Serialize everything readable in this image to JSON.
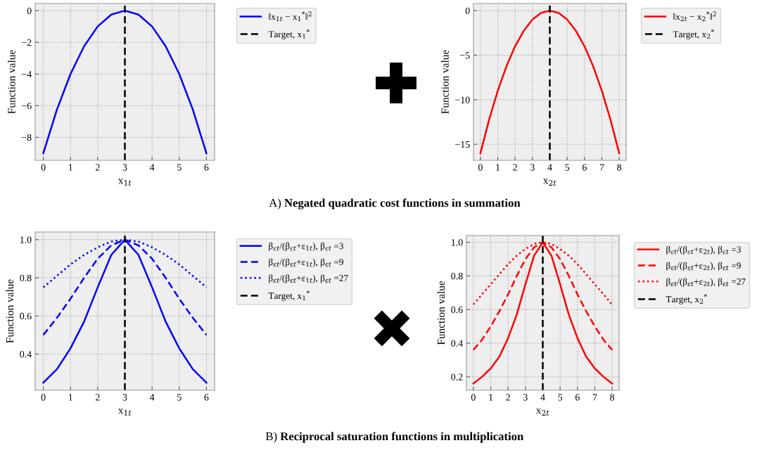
{
  "chart_data": [
    {
      "type": "line",
      "xlabel": "x$_{1t}$",
      "ylabel": "Function value",
      "legend": "right",
      "grid": true,
      "x": [
        0,
        0.5,
        1,
        1.5,
        2,
        2.5,
        3,
        3.5,
        4,
        4.5,
        5,
        5.5,
        6
      ],
      "series": [
        {
          "name": "‖x$_{1t}$ − x$_{1}$$^{*}$‖$^{2}$",
          "color": "#0000ff",
          "line_style": "solid",
          "values": [
            -9,
            -6.25,
            -4,
            -2.25,
            -1,
            -0.25,
            0,
            -0.25,
            -1,
            -2.25,
            -4,
            -6.25,
            -9
          ]
        }
      ],
      "ref_lines": [
        {
          "axis": "x",
          "value": 3,
          "label": "Target, x$_{1}$$^{*}$",
          "color": "#000000",
          "line_style": "dashed"
        }
      ],
      "xlim": [
        -0.3,
        6.3
      ],
      "xticks": [
        0,
        1,
        2,
        3,
        4,
        5,
        6
      ],
      "ylim": [
        -9.45,
        0.45
      ],
      "yticks": [
        -8,
        -6,
        -4,
        -2,
        0
      ],
      "annotations": [
        "A) Negated quadratic cost functions in summation"
      ]
    },
    {
      "type": "line",
      "xlabel": "x$_{2t}$",
      "ylabel": "Function value",
      "legend": "right",
      "grid": true,
      "x": [
        0,
        0.5,
        1,
        1.5,
        2,
        2.5,
        3,
        3.5,
        4,
        4.5,
        5,
        5.5,
        6,
        6.5,
        7,
        7.5,
        8
      ],
      "series": [
        {
          "name": "‖x$_{2t}$ − x$_{2}$$^{*}$‖$^{2}$",
          "color": "#ff0000",
          "line_style": "solid",
          "values": [
            -16,
            -12.25,
            -9,
            -6.25,
            -4,
            -2.25,
            -1,
            -0.25,
            0,
            -0.25,
            -1,
            -2.25,
            -4,
            -6.25,
            -9,
            -12.25,
            -16
          ]
        }
      ],
      "ref_lines": [
        {
          "axis": "x",
          "value": 4,
          "label": "Target, x$_{2}$$^{*}$",
          "color": "#000000",
          "line_style": "dashed"
        }
      ],
      "xlim": [
        -0.4,
        8.4
      ],
      "xticks": [
        0,
        1,
        2,
        3,
        4,
        5,
        6,
        7,
        8
      ],
      "ylim": [
        -16.8,
        0.8
      ],
      "yticks": [
        -15,
        -10,
        -5,
        0
      ]
    },
    {
      "type": "line",
      "xlabel": "x$_{1t}$",
      "ylabel": "Function value",
      "legend": "right",
      "grid": true,
      "x": [
        0,
        0.5,
        1,
        1.5,
        2,
        2.5,
        3,
        3.5,
        4,
        4.5,
        5,
        5.5,
        6
      ],
      "series": [
        {
          "name": "β$_{εt}$/(β$_{εt}$+ε$_{1t}$), β$_{εt}$ =3",
          "color": "#0000ff",
          "line_style": "solid",
          "values": [
            0.25,
            0.32,
            0.43,
            0.57,
            0.75,
            0.92,
            1,
            0.92,
            0.75,
            0.57,
            0.43,
            0.32,
            0.25
          ]
        },
        {
          "name": "β$_{εt}$/(β$_{εt}$+ε$_{1t}$), β$_{εt}$ =9",
          "color": "#0000ff",
          "line_style": "dashed",
          "values": [
            0.5,
            0.59,
            0.69,
            0.8,
            0.9,
            0.97,
            1,
            0.97,
            0.9,
            0.8,
            0.69,
            0.59,
            0.5
          ]
        },
        {
          "name": "β$_{εt}$/(β$_{εt}$+ε$_{1t}$), β$_{εt}$ =27",
          "color": "#0000ff",
          "line_style": "dotted",
          "values": [
            0.75,
            0.81,
            0.87,
            0.92,
            0.96,
            0.99,
            1,
            0.99,
            0.96,
            0.92,
            0.87,
            0.81,
            0.75
          ]
        }
      ],
      "ref_lines": [
        {
          "axis": "x",
          "value": 3,
          "label": "Target, x$_{1}$$^{*}$",
          "color": "#000000",
          "line_style": "dashed"
        }
      ],
      "xlim": [
        -0.3,
        6.3
      ],
      "xticks": [
        0,
        1,
        2,
        3,
        4,
        5,
        6
      ],
      "ylim": [
        0.21,
        1.04
      ],
      "yticks": [
        0.4,
        0.6,
        0.8,
        {
          "value": 1,
          "label": "1.0"
        }
      ],
      "annotations": [
        "B) Reciprocal saturation functions in multiplication"
      ]
    },
    {
      "type": "line",
      "xlabel": "x$_{2t}$",
      "ylabel": "Function value",
      "legend": "right",
      "grid": true,
      "x": [
        0,
        0.5,
        1,
        1.5,
        2,
        2.5,
        3,
        3.5,
        4,
        4.5,
        5,
        5.5,
        6,
        6.5,
        7,
        7.5,
        8
      ],
      "series": [
        {
          "name": "β$_{εt}$/(β$_{εt}$+ε$_{2t}$), β$_{εt}$ =3",
          "color": "#ff0000",
          "line_style": "solid",
          "values": [
            0.16,
            0.2,
            0.25,
            0.32,
            0.43,
            0.57,
            0.75,
            0.92,
            1,
            0.92,
            0.75,
            0.57,
            0.43,
            0.32,
            0.25,
            0.2,
            0.16
          ]
        },
        {
          "name": "β$_{εt}$/(β$_{εt}$+ε$_{2t}$), β$_{εt}$ =9",
          "color": "#ff0000",
          "line_style": "dashed",
          "values": [
            0.36,
            0.42,
            0.5,
            0.59,
            0.69,
            0.8,
            0.9,
            0.97,
            1,
            0.97,
            0.9,
            0.8,
            0.69,
            0.59,
            0.5,
            0.42,
            0.36
          ]
        },
        {
          "name": "β$_{εt}$/(β$_{εt}$+ε$_{2t}$), β$_{εt}$ =27",
          "color": "#ff0000",
          "line_style": "dotted",
          "values": [
            0.63,
            0.69,
            0.75,
            0.81,
            0.87,
            0.92,
            0.96,
            0.99,
            1,
            0.99,
            0.96,
            0.92,
            0.87,
            0.81,
            0.75,
            0.69,
            0.63
          ]
        }
      ],
      "ref_lines": [
        {
          "axis": "x",
          "value": 4,
          "label": "Target, x$_{2}$$^{*}$",
          "color": "#000000",
          "line_style": "dashed"
        }
      ],
      "xlim": [
        -0.4,
        8.4
      ],
      "xticks": [
        0,
        1,
        2,
        3,
        4,
        5,
        6,
        7,
        8
      ],
      "ylim": [
        0.12,
        1.04
      ],
      "yticks": [
        0.2,
        0.4,
        0.6,
        0.8,
        {
          "value": 1,
          "label": "1.0"
        }
      ]
    }
  ]
}
